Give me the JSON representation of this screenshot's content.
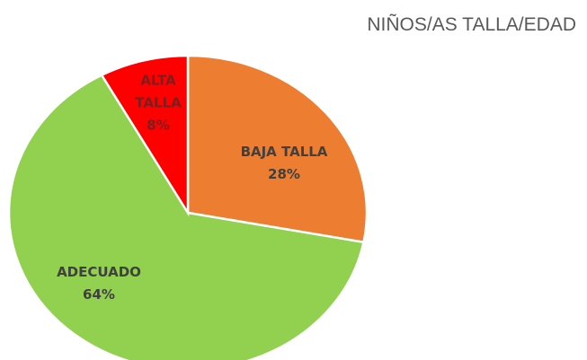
{
  "chart_data": {
    "type": "pie",
    "title": "NIÑOS/AS TALLA/EDAD",
    "categories": [
      "BAJA TALLA",
      "ADECUADO",
      "ALTA TALLA"
    ],
    "values": [
      28,
      64,
      8
    ],
    "value_labels": [
      "28%",
      "64%",
      "8%"
    ],
    "colors": [
      "#ED7D31",
      "#92D050",
      "#FF0000"
    ]
  }
}
